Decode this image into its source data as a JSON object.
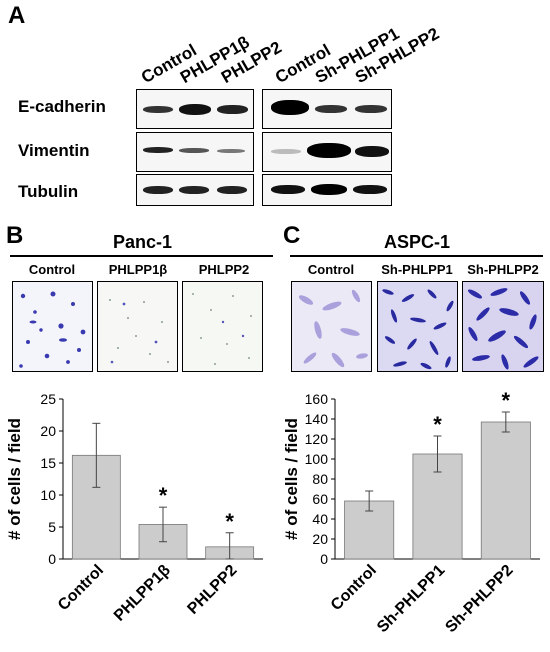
{
  "panel_a": {
    "letter": "A",
    "lanes_left": [
      "Control",
      "PHLPP1β",
      "PHLPP2"
    ],
    "lanes_right": [
      "Control",
      "Sh-PHLPP1",
      "Sh-PHLPP2"
    ],
    "rows": [
      "E-cadherin",
      "Vimentin",
      "Tubulin"
    ]
  },
  "panel_b": {
    "letter": "B",
    "title": "Panc-1",
    "micro_labels": [
      "Control",
      "PHLPP1β",
      "PHLPP2"
    ]
  },
  "panel_c": {
    "letter": "C",
    "title": "ASPC-1",
    "micro_labels": [
      "Control",
      "Sh-PHLPP1",
      "Sh-PHLPP2"
    ]
  },
  "chart_data": [
    {
      "type": "bar",
      "categories": [
        "Control",
        "PHLPP1β",
        "PHLPP2"
      ],
      "values": [
        16.2,
        5.4,
        1.9
      ],
      "errors": [
        5.0,
        2.7,
        2.2
      ],
      "significant": [
        false,
        true,
        true
      ],
      "significance_mark": "*",
      "ylabel": "# of cells / field",
      "ylim": [
        0,
        25
      ],
      "yticks": [
        0,
        5,
        10,
        15,
        20,
        25
      ],
      "bar_color": "#cccccc",
      "grid": false
    },
    {
      "type": "bar",
      "categories": [
        "Control",
        "Sh-PHLPP1",
        "Sh-PHLPP2"
      ],
      "values": [
        58,
        105,
        137
      ],
      "errors": [
        10,
        18,
        10
      ],
      "significant": [
        false,
        true,
        true
      ],
      "significance_mark": "*",
      "ylabel": "# of cells / field",
      "ylim": [
        0,
        160
      ],
      "yticks": [
        0,
        20,
        40,
        60,
        80,
        100,
        120,
        140,
        160
      ],
      "bar_color": "#cccccc",
      "grid": false
    }
  ]
}
